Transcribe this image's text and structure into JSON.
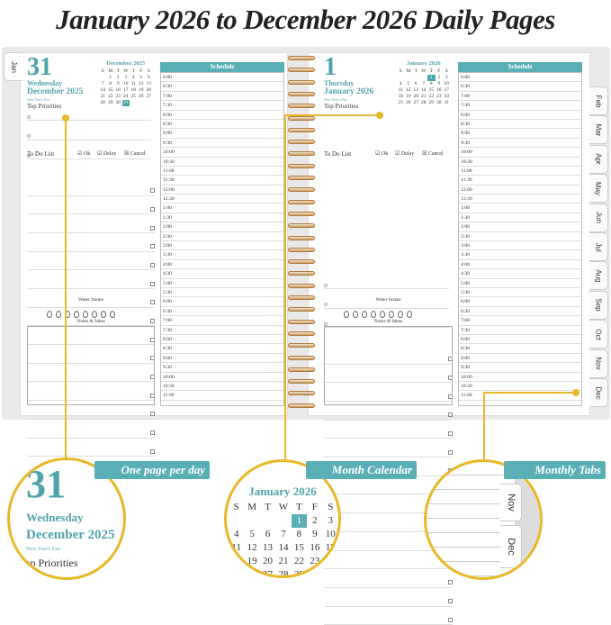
{
  "title": "January 2026 to December 2026 Daily Pages",
  "colors": {
    "accent": "#5aaeb5",
    "callout_line": "#e8b829"
  },
  "left_page": {
    "tab": "Jan",
    "day": "31",
    "weekday": "Wednesday",
    "month": "December 2025",
    "holiday": "New Year's Eve",
    "mini_calendar": {
      "title": "December 2025",
      "days": [
        "S",
        "M",
        "T",
        "W",
        "T",
        "F",
        "S"
      ],
      "weeks": [
        [
          "",
          "1",
          "2",
          "3",
          "4",
          "5",
          "6"
        ],
        [
          "7",
          "8",
          "9",
          "10",
          "11",
          "12",
          "13"
        ],
        [
          "14",
          "15",
          "16",
          "17",
          "18",
          "19",
          "20"
        ],
        [
          "21",
          "22",
          "23",
          "24",
          "25",
          "26",
          "27"
        ],
        [
          "28",
          "29",
          "30",
          "31",
          "",
          "",
          ""
        ]
      ],
      "selected": "31"
    }
  },
  "right_page": {
    "day": "1",
    "weekday": "Thursday",
    "month": "January 2026",
    "holiday": "New Year's Day",
    "mini_calendar": {
      "title": "January 2026",
      "days": [
        "S",
        "M",
        "T",
        "W",
        "T",
        "F",
        "S"
      ],
      "weeks": [
        [
          "",
          "",
          "",
          "",
          "1",
          "2",
          "3"
        ],
        [
          "4",
          "5",
          "6",
          "7",
          "8",
          "9",
          "10"
        ],
        [
          "11",
          "12",
          "13",
          "14",
          "15",
          "16",
          "17"
        ],
        [
          "18",
          "19",
          "20",
          "21",
          "22",
          "23",
          "24"
        ],
        [
          "25",
          "26",
          "27",
          "28",
          "29",
          "30",
          "31"
        ]
      ],
      "selected": "1"
    }
  },
  "labels": {
    "top_priorities": "Top Priorities",
    "todo": "To Do List",
    "ok": "☑ Ok",
    "delay": "☑ Delay",
    "cancel": "☒ Cancel",
    "water": "Water Intake",
    "notes": "Notes & Ideas",
    "schedule": "Schedule"
  },
  "times": [
    "6:00",
    "6:30",
    "7:00",
    "7:30",
    "8:00",
    "8:30",
    "9:00",
    "9:30",
    "10:00",
    "10:30",
    "11:00",
    "11:30",
    "12:00",
    "12:30",
    "1:00",
    "1:30",
    "2:00",
    "2:30",
    "3:00",
    "3:30",
    "4:00",
    "4:30",
    "5:00",
    "5:30",
    "6:00",
    "6:30",
    "7:00",
    "7:30",
    "8:00",
    "8:30",
    "9:00",
    "9:30",
    "10:00",
    "10:30",
    "11:00"
  ],
  "side_tabs": [
    "Feb",
    "Mar",
    "Apr",
    "May",
    "Jun",
    "Jul",
    "Aug",
    "Sep",
    "Oct",
    "Nov",
    "Dec"
  ],
  "callouts": {
    "one_page": {
      "label": "One page per day",
      "day": "31",
      "weekday": "Wednesday",
      "month": "December 2025",
      "holiday": "New Year's Eve",
      "partial": "Top Priorities"
    },
    "month_calendar": {
      "label": "Month Calendar",
      "title": "January 2026"
    },
    "monthly_tabs": {
      "label": "Monthly Tabs",
      "tabs": [
        "Nov",
        "Dec"
      ]
    }
  }
}
